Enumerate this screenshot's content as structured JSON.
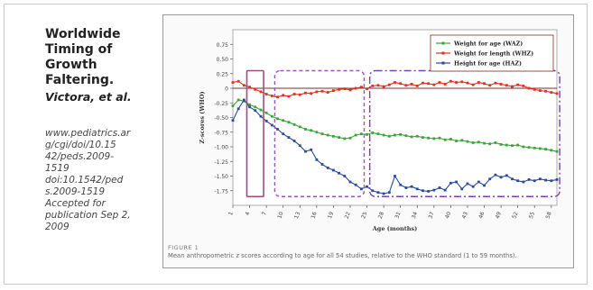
{
  "slide": {
    "title_lines": [
      "Worldwide",
      "Timing of",
      "Growth",
      "Faltering."
    ],
    "authors": "Victora, et al.",
    "reference_lines": [
      "www.pediatrics.ar",
      "g/cgi/doi/10.15",
      "42/peds.2009-",
      "1519",
      "doi:10.1542/ped",
      "s.2009-1519",
      "Accepted for",
      "publication Sep 2,",
      "2009"
    ]
  },
  "figure": {
    "label": "FIGURE 1",
    "caption": "Mean anthropometric z scores according to age for all 54 studies, relative to the WHO standard (1 to 59 months)."
  },
  "chart_data": {
    "type": "line",
    "xlabel": "Age (months)",
    "ylabel": "Z-scores (WHO)",
    "ylim": [
      -2.0,
      1.0
    ],
    "xlim": [
      1,
      59
    ],
    "yticks": [
      0.75,
      0.5,
      0.25,
      0,
      -0.25,
      -0.5,
      -0.75,
      -1.0,
      -1.25,
      -1.5,
      -1.75
    ],
    "ytick_labels": [
      "0.75",
      "0.50",
      "0.25",
      "0",
      "-0.25",
      "-0.50",
      "-0.75",
      "-1.00",
      "-1.25",
      "-1.50",
      "-1.75"
    ],
    "xticks": [
      1,
      4,
      7,
      10,
      13,
      16,
      19,
      22,
      25,
      28,
      31,
      34,
      37,
      40,
      43,
      46,
      49,
      52,
      55,
      58
    ],
    "zero_line": true,
    "legend_position": "top-right",
    "x": [
      1,
      2,
      3,
      4,
      5,
      6,
      7,
      8,
      9,
      10,
      11,
      12,
      13,
      14,
      15,
      16,
      17,
      18,
      19,
      20,
      21,
      22,
      23,
      24,
      25,
      26,
      27,
      28,
      29,
      30,
      31,
      32,
      33,
      34,
      35,
      36,
      37,
      38,
      39,
      40,
      41,
      42,
      43,
      44,
      45,
      46,
      47,
      48,
      49,
      50,
      51,
      52,
      53,
      54,
      55,
      56,
      57,
      58,
      59
    ],
    "series": [
      {
        "name": "Weight for age (WAZ)",
        "color": "#3aa53a",
        "values": [
          -0.3,
          -0.2,
          -0.22,
          -0.28,
          -0.32,
          -0.37,
          -0.42,
          -0.48,
          -0.52,
          -0.55,
          -0.58,
          -0.62,
          -0.66,
          -0.7,
          -0.72,
          -0.75,
          -0.78,
          -0.8,
          -0.82,
          -0.84,
          -0.86,
          -0.85,
          -0.8,
          -0.78,
          -0.79,
          -0.76,
          -0.78,
          -0.8,
          -0.82,
          -0.8,
          -0.79,
          -0.81,
          -0.83,
          -0.82,
          -0.84,
          -0.85,
          -0.86,
          -0.85,
          -0.88,
          -0.87,
          -0.9,
          -0.89,
          -0.91,
          -0.93,
          -0.92,
          -0.94,
          -0.95,
          -0.93,
          -0.96,
          -0.97,
          -0.98,
          -0.97,
          -1.0,
          -1.01,
          -1.02,
          -1.03,
          -1.04,
          -1.06,
          -1.08
        ]
      },
      {
        "name": "Weight for length (WHZ)",
        "color": "#e0301e",
        "values": [
          0.1,
          0.12,
          0.05,
          0.02,
          -0.02,
          -0.06,
          -0.1,
          -0.13,
          -0.15,
          -0.12,
          -0.14,
          -0.1,
          -0.11,
          -0.08,
          -0.09,
          -0.06,
          -0.05,
          -0.07,
          -0.04,
          -0.02,
          -0.01,
          -0.03,
          0.0,
          0.02,
          -0.01,
          0.04,
          0.05,
          0.03,
          0.06,
          0.1,
          0.08,
          0.05,
          0.07,
          0.04,
          0.09,
          0.08,
          0.06,
          0.1,
          0.07,
          0.12,
          0.1,
          0.11,
          0.09,
          0.06,
          0.1,
          0.08,
          0.05,
          0.09,
          0.07,
          0.05,
          0.03,
          0.06,
          0.04,
          0.0,
          -0.02,
          -0.04,
          -0.05,
          -0.07,
          -0.09
        ]
      },
      {
        "name": "Height for age (HAZ)",
        "color": "#2a4a9a",
        "values": [
          -0.55,
          -0.35,
          -0.2,
          -0.32,
          -0.38,
          -0.48,
          -0.56,
          -0.63,
          -0.7,
          -0.78,
          -0.84,
          -0.9,
          -0.98,
          -1.08,
          -1.05,
          -1.22,
          -1.3,
          -1.36,
          -1.4,
          -1.45,
          -1.5,
          -1.6,
          -1.65,
          -1.72,
          -1.68,
          -1.75,
          -1.78,
          -1.8,
          -1.78,
          -1.5,
          -1.65,
          -1.7,
          -1.68,
          -1.72,
          -1.75,
          -1.76,
          -1.74,
          -1.7,
          -1.74,
          -1.62,
          -1.6,
          -1.72,
          -1.63,
          -1.68,
          -1.6,
          -1.66,
          -1.55,
          -1.48,
          -1.52,
          -1.49,
          -1.55,
          -1.58,
          -1.6,
          -1.56,
          -1.58,
          -1.55,
          -1.57,
          -1.58,
          -1.56
        ]
      }
    ],
    "highlight_boxes": [
      {
        "x_from": 3.5,
        "x_to": 6.5,
        "y_from": -1.85,
        "y_to": 0.3,
        "color": "#a04d7a"
      },
      {
        "x_from": 8.5,
        "x_to": 24.5,
        "y_from": -1.85,
        "y_to": 0.3,
        "color": "#a04ec0"
      },
      {
        "x_from": 25.5,
        "x_to": 59.5,
        "y_from": -1.85,
        "y_to": 0.3,
        "color": "#7a3fb0"
      }
    ]
  }
}
